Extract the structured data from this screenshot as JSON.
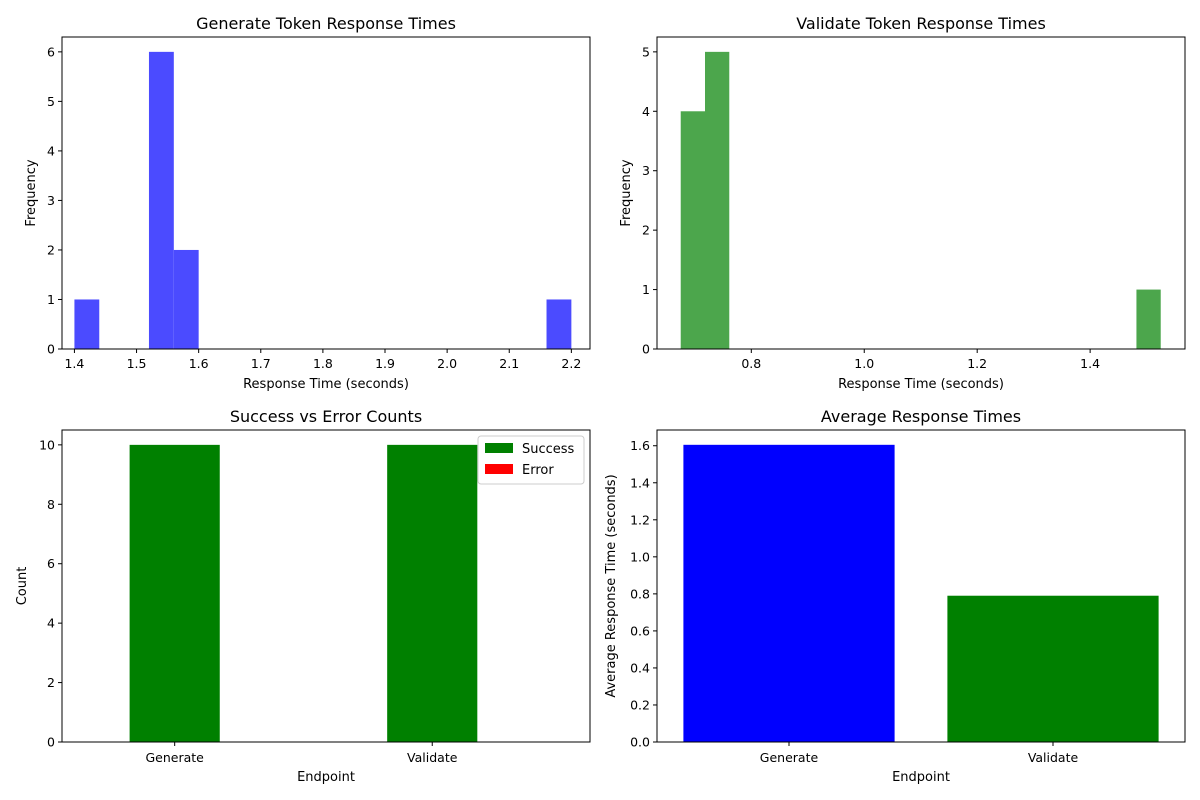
{
  "chart_data": [
    {
      "type": "bar",
      "title": "Generate Token Response Times",
      "xlabel": "Response Time (seconds)",
      "ylabel": "Frequency",
      "xlim": [
        1.38,
        2.23
      ],
      "ylim": [
        0,
        6.3
      ],
      "xticks": [
        1.4,
        1.5,
        1.6,
        1.7,
        1.8,
        1.9,
        2.0,
        2.1,
        2.2
      ],
      "xtick_labels": [
        "1.4",
        "1.5",
        "1.6",
        "1.7",
        "1.8",
        "1.9",
        "2.0",
        "2.1",
        "2.2"
      ],
      "yticks": [
        0,
        1,
        2,
        3,
        4,
        5,
        6
      ],
      "ytick_labels": [
        "0",
        "1",
        "2",
        "3",
        "4",
        "5",
        "6"
      ],
      "color": "#4b4bff",
      "bins": [
        {
          "x0": 1.4,
          "x1": 1.44,
          "count": 1
        },
        {
          "x0": 1.52,
          "x1": 1.56,
          "count": 6
        },
        {
          "x0": 1.56,
          "x1": 1.6,
          "count": 2
        },
        {
          "x0": 2.16,
          "x1": 2.2,
          "count": 1
        }
      ],
      "grid": false
    },
    {
      "type": "bar",
      "title": "Validate Token Response Times",
      "xlabel": "Response Time (seconds)",
      "ylabel": "Frequency",
      "xlim": [
        0.633,
        1.568
      ],
      "ylim": [
        0,
        5.25
      ],
      "xticks": [
        0.8,
        1.0,
        1.2,
        1.4
      ],
      "xtick_labels": [
        "0.8",
        "1.0",
        "1.2",
        "1.4"
      ],
      "yticks": [
        0,
        1,
        2,
        3,
        4,
        5
      ],
      "ytick_labels": [
        "0",
        "1",
        "2",
        "3",
        "4",
        "5"
      ],
      "color": "#4ca64c",
      "bins": [
        {
          "x0": 0.675,
          "x1": 0.718,
          "count": 4
        },
        {
          "x0": 0.718,
          "x1": 0.761,
          "count": 5
        },
        {
          "x0": 1.482,
          "x1": 1.525,
          "count": 1
        }
      ],
      "grid": false
    },
    {
      "type": "bar",
      "title": "Success vs Error Counts",
      "xlabel": "Endpoint",
      "ylabel": "Count",
      "categories": [
        "Generate",
        "Validate"
      ],
      "ylim": [
        0,
        10.5
      ],
      "yticks": [
        0,
        2,
        4,
        6,
        8,
        10
      ],
      "ytick_labels": [
        "0",
        "2",
        "4",
        "6",
        "8",
        "10"
      ],
      "series": [
        {
          "name": "Success",
          "values": [
            10,
            10
          ],
          "color": "#008000"
        },
        {
          "name": "Error",
          "values": [
            0,
            0
          ],
          "color": "#ff0000"
        }
      ],
      "legend": "top-right",
      "grid": false
    },
    {
      "type": "bar",
      "title": "Average Response Times",
      "xlabel": "Endpoint",
      "ylabel": "Average Response Time (seconds)",
      "categories": [
        "Generate",
        "Validate"
      ],
      "values": [
        1.605,
        0.79
      ],
      "colors": [
        "#0000ff",
        "#008000"
      ],
      "ylim": [
        0,
        1.685
      ],
      "yticks": [
        0.0,
        0.2,
        0.4,
        0.6,
        0.8,
        1.0,
        1.2,
        1.4,
        1.6
      ],
      "ytick_labels": [
        "0.0",
        "0.2",
        "0.4",
        "0.6",
        "0.8",
        "1.0",
        "1.2",
        "1.4",
        "1.6"
      ],
      "grid": false
    }
  ]
}
